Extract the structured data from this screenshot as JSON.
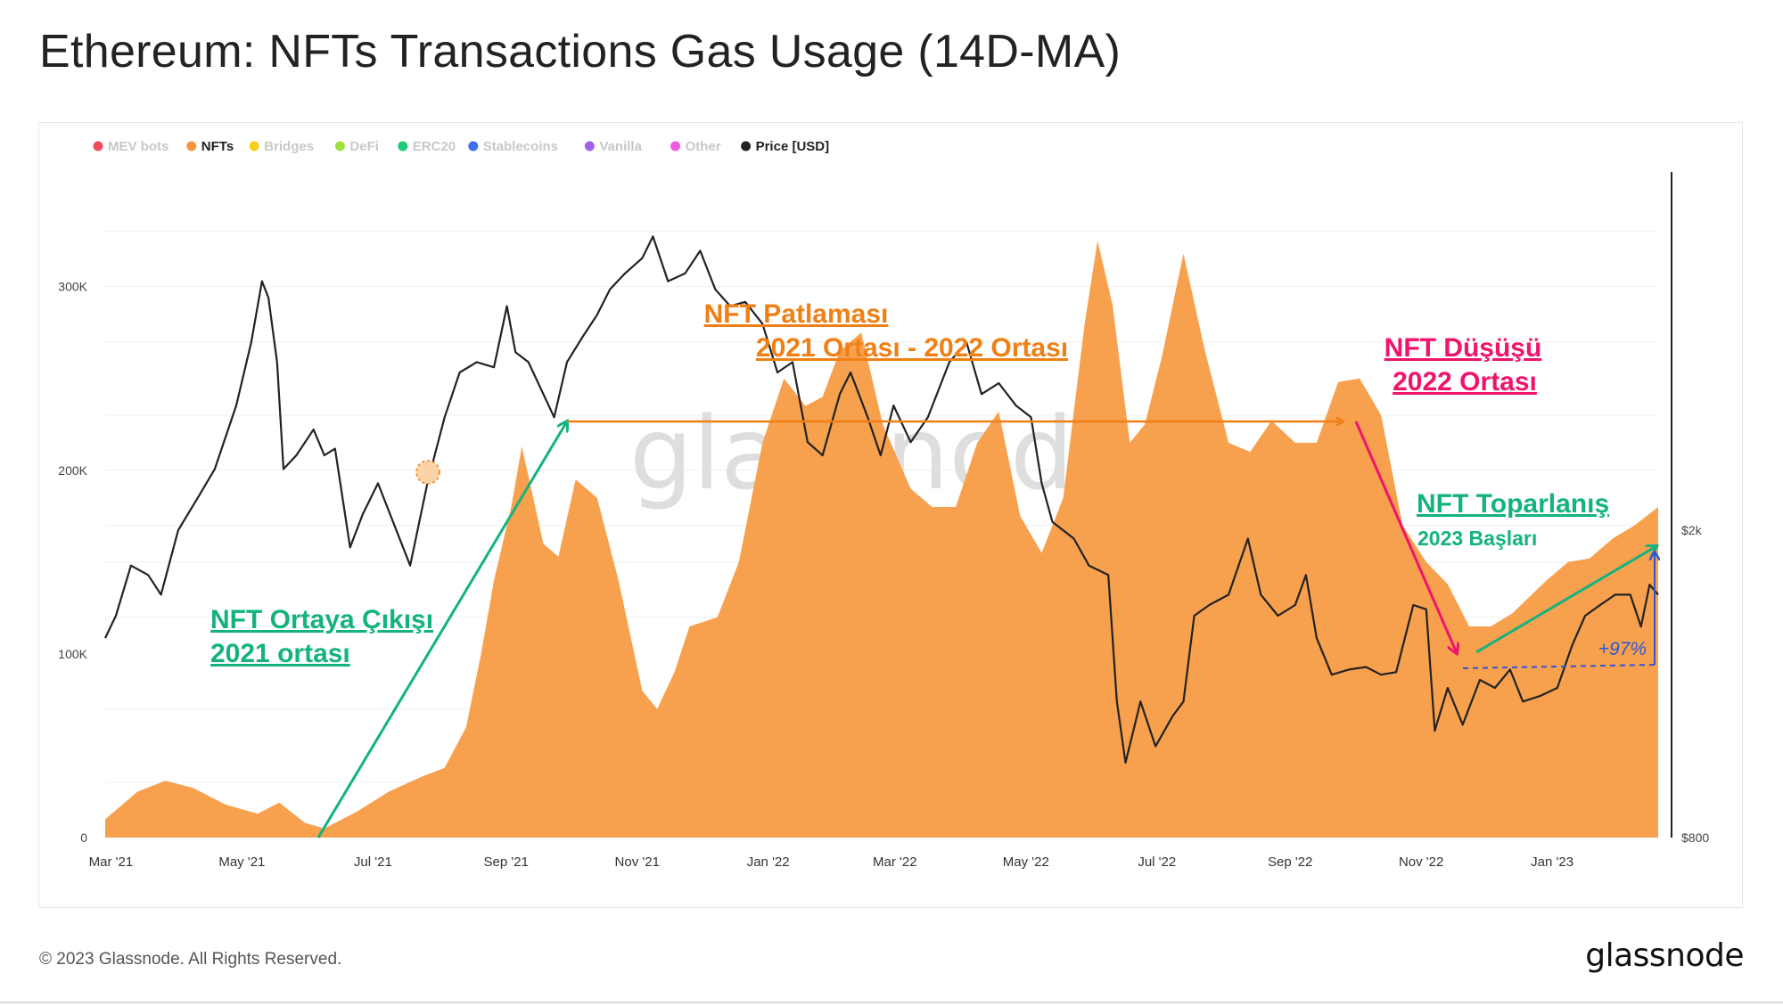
{
  "title": "Ethereum: NFTs Transactions Gas Usage (14D-MA)",
  "footer": {
    "copyright": "© 2023 Glassnode. All Rights Reserved.",
    "brand": "glassnode"
  },
  "watermark": "glassnode",
  "colors": {
    "nfts_area": "#f7a14f",
    "price_line": "#222222",
    "orange_annotation": "#f07f14",
    "green_annotation": "#14b37d",
    "pink_annotation": "#f0146c",
    "blue_annotation": "#2f55d4",
    "grid": "#ececec"
  },
  "legend": [
    {
      "name": "MEV bots",
      "color": "#f04a5a",
      "active": false
    },
    {
      "name": "NFTs",
      "color": "#f7943b",
      "active": true
    },
    {
      "name": "Bridges",
      "color": "#f5cf1e",
      "active": false
    },
    {
      "name": "DeFi",
      "color": "#9fe03c",
      "active": false
    },
    {
      "name": "ERC20",
      "color": "#1cc97b",
      "active": false
    },
    {
      "name": "Stablecoins",
      "color": "#3f6ef0",
      "active": false
    },
    {
      "name": "Vanilla",
      "color": "#a45ef0",
      "active": false
    },
    {
      "name": "Other",
      "color": "#f05ae0",
      "active": false
    },
    {
      "name": "Price [USD]",
      "color": "#222222",
      "active": true
    }
  ],
  "annotations": {
    "emergence": {
      "line1": "NFT Ortaya Çıkışı",
      "line2": "2021 ortası"
    },
    "boom": {
      "line1": "NFT Patlaması",
      "line2": "2021 Ortası - 2022 Ortası"
    },
    "decline": {
      "line1": "NFT Düşüşü",
      "line2": "2022 Ortası"
    },
    "recovery": {
      "line1": "NFT Toparlanış",
      "line2": "2023 Başları"
    },
    "change": "+97%"
  },
  "chart_data": {
    "type": "area",
    "x_tick_labels": [
      "Mar '21",
      "May '21",
      "Jul '21",
      "Sep '21",
      "Nov '21",
      "Jan '22",
      "Mar '22",
      "May '22",
      "Jul '22",
      "Sep '22",
      "Nov '22",
      "Jan '23"
    ],
    "y_left": {
      "ticks": [
        0,
        100000,
        200000,
        300000
      ],
      "tick_labels": [
        "0",
        "100K",
        "200K",
        "300K"
      ],
      "range": [
        0,
        360000
      ]
    },
    "y_right": {
      "scale": "log",
      "ticks": [
        800,
        2000
      ],
      "tick_labels": [
        "$800",
        "$2k"
      ]
    },
    "series": [
      {
        "name": "NFTs",
        "axis": "left",
        "type": "area",
        "points": [
          [
            "2021-02-28",
            10000
          ],
          [
            "2021-03-15",
            25000
          ],
          [
            "2021-03-28",
            31000
          ],
          [
            "2021-04-10",
            27000
          ],
          [
            "2021-04-25",
            18000
          ],
          [
            "2021-05-10",
            13000
          ],
          [
            "2021-05-20",
            19000
          ],
          [
            "2021-06-01",
            8000
          ],
          [
            "2021-06-10",
            5000
          ],
          [
            "2021-06-25",
            14000
          ],
          [
            "2021-07-10",
            25000
          ],
          [
            "2021-07-25",
            33000
          ],
          [
            "2021-08-05",
            38000
          ],
          [
            "2021-08-15",
            60000
          ],
          [
            "2021-08-22",
            100000
          ],
          [
            "2021-08-28",
            140000
          ],
          [
            "2021-09-05",
            180000
          ],
          [
            "2021-09-10",
            213000
          ],
          [
            "2021-09-20",
            160000
          ],
          [
            "2021-09-27",
            153000
          ],
          [
            "2021-10-05",
            195000
          ],
          [
            "2021-10-15",
            185000
          ],
          [
            "2021-10-25",
            140000
          ],
          [
            "2021-11-05",
            80000
          ],
          [
            "2021-11-12",
            70000
          ],
          [
            "2021-11-20",
            90000
          ],
          [
            "2021-11-27",
            115000
          ],
          [
            "2021-12-10",
            120000
          ],
          [
            "2021-12-20",
            150000
          ],
          [
            "2021-12-31",
            215000
          ],
          [
            "2022-01-10",
            250000
          ],
          [
            "2022-01-20",
            235000
          ],
          [
            "2022-01-28",
            240000
          ],
          [
            "2022-02-05",
            265000
          ],
          [
            "2022-02-15",
            275000
          ],
          [
            "2022-02-25",
            225000
          ],
          [
            "2022-03-10",
            190000
          ],
          [
            "2022-03-20",
            180000
          ],
          [
            "2022-03-31",
            180000
          ],
          [
            "2022-04-10",
            215000
          ],
          [
            "2022-04-20",
            232000
          ],
          [
            "2022-04-30",
            175000
          ],
          [
            "2022-05-10",
            155000
          ],
          [
            "2022-05-20",
            185000
          ],
          [
            "2022-05-30",
            280000
          ],
          [
            "2022-06-05",
            325000
          ],
          [
            "2022-06-12",
            290000
          ],
          [
            "2022-06-20",
            215000
          ],
          [
            "2022-06-27",
            225000
          ],
          [
            "2022-07-05",
            262000
          ],
          [
            "2022-07-15",
            318000
          ],
          [
            "2022-07-25",
            265000
          ],
          [
            "2022-08-05",
            215000
          ],
          [
            "2022-08-15",
            210000
          ],
          [
            "2022-08-25",
            227000
          ],
          [
            "2022-09-05",
            215000
          ],
          [
            "2022-09-15",
            215000
          ],
          [
            "2022-09-25",
            248000
          ],
          [
            "2022-10-05",
            250000
          ],
          [
            "2022-10-15",
            230000
          ],
          [
            "2022-10-25",
            170000
          ],
          [
            "2022-11-05",
            150000
          ],
          [
            "2022-11-15",
            138000
          ],
          [
            "2022-11-25",
            115000
          ],
          [
            "2022-12-05",
            115000
          ],
          [
            "2022-12-15",
            122000
          ],
          [
            "2022-12-31",
            140000
          ],
          [
            "2023-01-10",
            150000
          ],
          [
            "2023-01-20",
            152000
          ],
          [
            "2023-01-31",
            163000
          ],
          [
            "2023-02-10",
            170000
          ],
          [
            "2023-02-21",
            180000
          ]
        ]
      },
      {
        "name": "Price [USD]",
        "axis": "right",
        "type": "line",
        "points": [
          [
            "2021-02-28",
            1450
          ],
          [
            "2021-03-05",
            1550
          ],
          [
            "2021-03-12",
            1800
          ],
          [
            "2021-03-20",
            1750
          ],
          [
            "2021-03-26",
            1650
          ],
          [
            "2021-04-03",
            2000
          ],
          [
            "2021-04-12",
            2200
          ],
          [
            "2021-04-20",
            2400
          ],
          [
            "2021-04-30",
            2900
          ],
          [
            "2021-05-07",
            3500
          ],
          [
            "2021-05-12",
            4200
          ],
          [
            "2021-05-15",
            4000
          ],
          [
            "2021-05-19",
            3300
          ],
          [
            "2021-05-22",
            2400
          ],
          [
            "2021-05-28",
            2500
          ],
          [
            "2021-06-05",
            2700
          ],
          [
            "2021-06-10",
            2500
          ],
          [
            "2021-06-15",
            2550
          ],
          [
            "2021-06-22",
            1900
          ],
          [
            "2021-06-28",
            2100
          ],
          [
            "2021-07-05",
            2300
          ],
          [
            "2021-07-12",
            2050
          ],
          [
            "2021-07-20",
            1800
          ],
          [
            "2021-07-28",
            2300
          ],
          [
            "2021-08-05",
            2800
          ],
          [
            "2021-08-12",
            3200
          ],
          [
            "2021-08-20",
            3300
          ],
          [
            "2021-08-28",
            3250
          ],
          [
            "2021-09-03",
            3900
          ],
          [
            "2021-09-07",
            3400
          ],
          [
            "2021-09-13",
            3300
          ],
          [
            "2021-09-20",
            3000
          ],
          [
            "2021-09-25",
            2800
          ],
          [
            "2021-10-01",
            3300
          ],
          [
            "2021-10-08",
            3550
          ],
          [
            "2021-10-15",
            3800
          ],
          [
            "2021-10-21",
            4100
          ],
          [
            "2021-10-28",
            4300
          ],
          [
            "2021-11-05",
            4500
          ],
          [
            "2021-11-10",
            4800
          ],
          [
            "2021-11-17",
            4200
          ],
          [
            "2021-11-25",
            4300
          ],
          [
            "2021-12-02",
            4600
          ],
          [
            "2021-12-09",
            4100
          ],
          [
            "2021-12-16",
            3900
          ],
          [
            "2021-12-23",
            3950
          ],
          [
            "2021-12-31",
            3700
          ],
          [
            "2022-01-07",
            3200
          ],
          [
            "2022-01-14",
            3300
          ],
          [
            "2022-01-21",
            2600
          ],
          [
            "2022-01-28",
            2500
          ],
          [
            "2022-02-05",
            3000
          ],
          [
            "2022-02-10",
            3200
          ],
          [
            "2022-02-18",
            2800
          ],
          [
            "2022-02-24",
            2500
          ],
          [
            "2022-03-02",
            2900
          ],
          [
            "2022-03-10",
            2600
          ],
          [
            "2022-03-18",
            2800
          ],
          [
            "2022-03-28",
            3300
          ],
          [
            "2022-04-05",
            3500
          ],
          [
            "2022-04-12",
            3000
          ],
          [
            "2022-04-20",
            3100
          ],
          [
            "2022-04-28",
            2900
          ],
          [
            "2022-05-05",
            2800
          ],
          [
            "2022-05-10",
            2300
          ],
          [
            "2022-05-15",
            2050
          ],
          [
            "2022-05-25",
            1950
          ],
          [
            "2022-06-01",
            1800
          ],
          [
            "2022-06-10",
            1750
          ],
          [
            "2022-06-14",
            1200
          ],
          [
            "2022-06-18",
            1000
          ],
          [
            "2022-06-25",
            1200
          ],
          [
            "2022-07-02",
            1050
          ],
          [
            "2022-07-10",
            1150
          ],
          [
            "2022-07-15",
            1200
          ],
          [
            "2022-07-20",
            1550
          ],
          [
            "2022-07-27",
            1600
          ],
          [
            "2022-08-05",
            1650
          ],
          [
            "2022-08-14",
            1950
          ],
          [
            "2022-08-20",
            1650
          ],
          [
            "2022-08-28",
            1550
          ],
          [
            "2022-09-05",
            1600
          ],
          [
            "2022-09-10",
            1750
          ],
          [
            "2022-09-15",
            1450
          ],
          [
            "2022-09-22",
            1300
          ],
          [
            "2022-09-30",
            1320
          ],
          [
            "2022-10-08",
            1330
          ],
          [
            "2022-10-15",
            1300
          ],
          [
            "2022-10-22",
            1310
          ],
          [
            "2022-10-30",
            1600
          ],
          [
            "2022-11-05",
            1580
          ],
          [
            "2022-11-09",
            1100
          ],
          [
            "2022-11-15",
            1250
          ],
          [
            "2022-11-22",
            1120
          ],
          [
            "2022-11-30",
            1280
          ],
          [
            "2022-12-07",
            1250
          ],
          [
            "2022-12-14",
            1320
          ],
          [
            "2022-12-20",
            1200
          ],
          [
            "2022-12-28",
            1220
          ],
          [
            "2023-01-05",
            1250
          ],
          [
            "2023-01-12",
            1420
          ],
          [
            "2023-01-18",
            1550
          ],
          [
            "2023-01-25",
            1600
          ],
          [
            "2023-02-01",
            1650
          ],
          [
            "2023-02-08",
            1650
          ],
          [
            "2023-02-13",
            1500
          ],
          [
            "2023-02-17",
            1700
          ],
          [
            "2023-02-21",
            1650
          ]
        ]
      }
    ]
  }
}
